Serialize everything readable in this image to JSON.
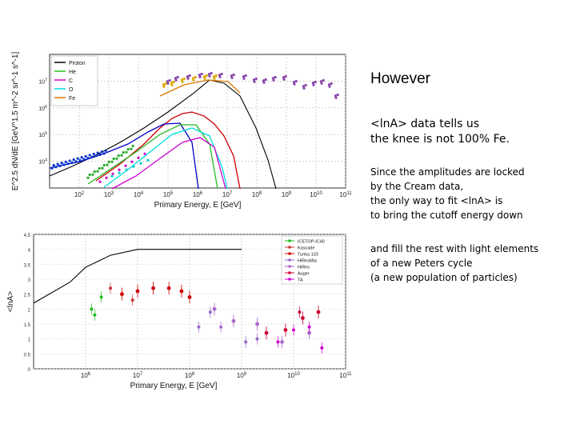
{
  "slide": {
    "title": "However",
    "paragraphs": [
      "<lnA> data tells us\nthe knee is not 100% Fe.",
      "Since the amplitudes are locked\nby the Cream data,\nthe only way to fit <lnA>  is\nto bring the cutoff energy down",
      "and fill the rest with light elements\nof  a new Peters cycle\n(a new population of particles)"
    ]
  },
  "chart_data": [
    {
      "type": "line",
      "title": "",
      "xlabel": "Primary Energy, E [GeV]",
      "ylabel": "E^2.5 dN/dE [GeV^1.5 m^-2 sr^-1 s^-1]",
      "xscale": "log",
      "yscale": "log",
      "xlim": [
        10,
        100000000000
      ],
      "ylim": [
        1000,
        100000000
      ],
      "x_ticks": [
        "10^2",
        "10^3",
        "10^4",
        "10^5",
        "10^6",
        "10^7",
        "10^8",
        "10^9",
        "10^10",
        "10^11"
      ],
      "y_ticks": [
        "10^4",
        "10^5",
        "10^6",
        "10^7"
      ],
      "grid": true,
      "legend_position": "top-left",
      "colors": {
        "Proton": "#000000",
        "He": "#22bb22",
        "C": "#cc00cc",
        "O": "#00dddd",
        "Fe": "#dd7700",
        "p_cutoff": "#0000cc",
        "knee": "#cc0000"
      },
      "series": [
        {
          "name": "Proton",
          "x": [
            10,
            100,
            1000,
            10000,
            100000,
            1000000,
            10000000
          ],
          "y": [
            10000,
            32000,
            100000,
            320000,
            1000000,
            3200000,
            5000000
          ]
        },
        {
          "name": "He",
          "x": [
            10,
            100,
            1000,
            10000,
            100000,
            1000000,
            10000000
          ],
          "y": [
            6000,
            18000,
            50000,
            150000,
            450000,
            1000000,
            600000
          ]
        },
        {
          "name": "C",
          "x": [
            100,
            1000,
            10000,
            100000,
            1000000,
            10000000
          ],
          "y": [
            5000,
            15000,
            45000,
            140000,
            400000,
            700000
          ]
        },
        {
          "name": "O",
          "x": [
            100,
            1000,
            10000,
            100000,
            1000000,
            10000000
          ],
          "y": [
            6000,
            18000,
            55000,
            170000,
            500000,
            800000
          ]
        },
        {
          "name": "Fe",
          "x": [
            1000,
            10000,
            100000,
            1000000,
            10000000,
            100000000
          ],
          "y": [
            3000,
            20000,
            150000,
            1200000,
            8000000,
            12000000
          ]
        }
      ]
    },
    {
      "type": "scatter",
      "title": "",
      "xlabel": "Primary Energy, E [GeV]",
      "ylabel": "<lnA>",
      "xscale": "log",
      "xlim": [
        100000,
        100000000000
      ],
      "ylim": [
        0,
        4.5
      ],
      "x_ticks": [
        "10^6",
        "10^7",
        "10^8",
        "10^9",
        "10^10",
        "10^11"
      ],
      "y_ticks": [
        "0",
        "0.5",
        "1",
        "1.5",
        "2",
        "2.5",
        "3",
        "3.5",
        "4",
        "4.5"
      ],
      "grid": true,
      "legend_position": "top-right",
      "legend": [
        "ICETOP-IC40",
        "Kascade",
        "Tunka 133",
        "HiResMia",
        "HiRes",
        "Auger",
        "TA"
      ],
      "colors": {
        "ICETOP-IC40": "#22bb22",
        "Kascade": "#cc3333",
        "Tunka 133": "#cc0000",
        "HiResMia": "#9966cc",
        "HiRes": "#aa66cc",
        "Auger": "#cc0033",
        "TA": "#cc00cc",
        "model": "#000000"
      },
      "series": [
        {
          "name": "model",
          "x": [
            100000,
            500000,
            1000000,
            3000000,
            10000000,
            30000000,
            100000000,
            1000000000
          ],
          "y": [
            2.2,
            2.9,
            3.4,
            3.8,
            4.0,
            4.0,
            4.0,
            4.0
          ]
        },
        {
          "name": "Tunka 133",
          "x": [
            5000000,
            10000000,
            20000000,
            40000000,
            70000000,
            100000000
          ],
          "y": [
            2.5,
            2.6,
            2.7,
            2.7,
            2.6,
            2.4
          ]
        },
        {
          "name": "HiRes",
          "x": [
            300000000,
            700000000,
            2000000000,
            6000000000,
            20000000000
          ],
          "y": [
            2.0,
            1.6,
            1.5,
            0.9,
            1.2
          ]
        },
        {
          "name": "Auger",
          "x": [
            3000000000,
            7000000000,
            15000000000,
            30000000000
          ],
          "y": [
            1.2,
            1.3,
            1.7,
            1.9
          ]
        }
      ]
    }
  ]
}
